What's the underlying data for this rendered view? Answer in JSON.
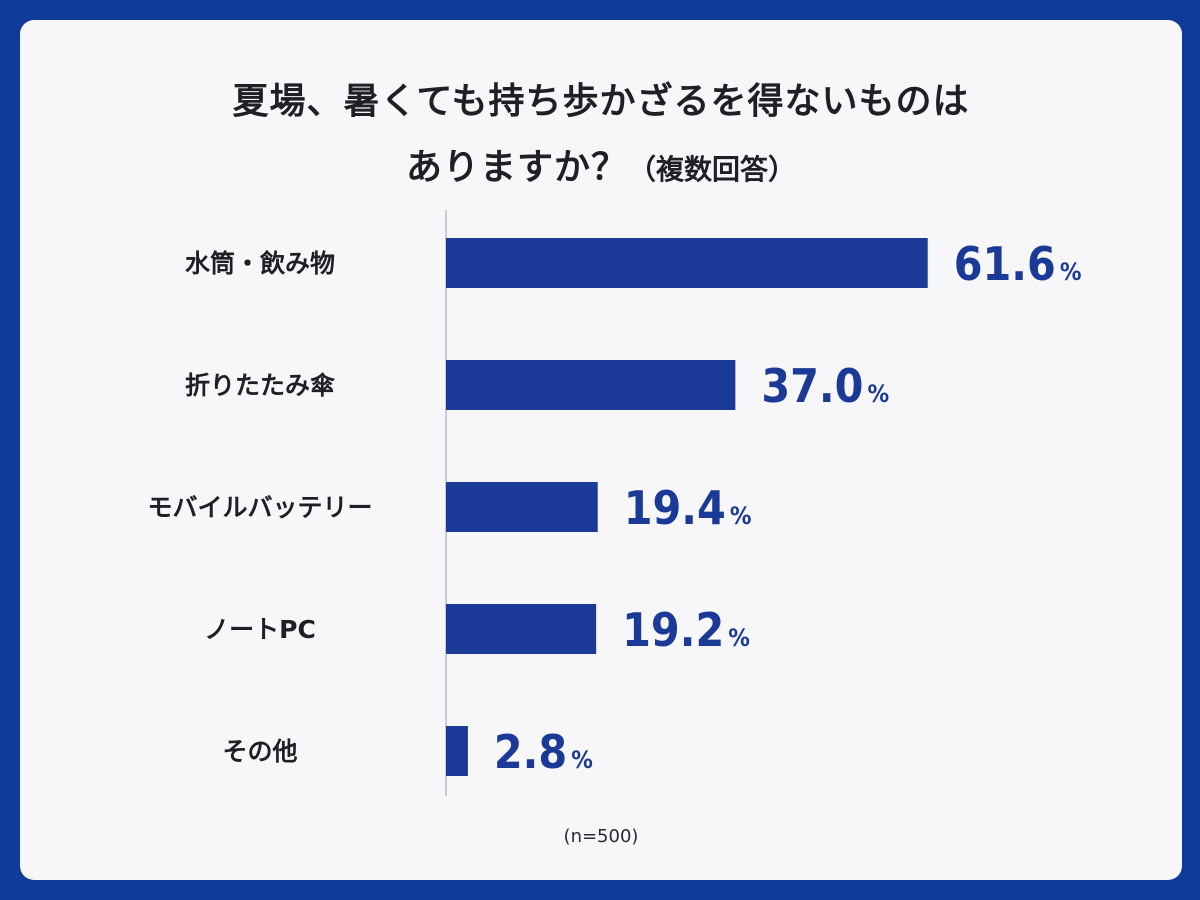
{
  "title_line1": "夏場、暑くても持ち歩かざるを得ないものは",
  "title_line2": "ありますか？",
  "title_note": "（複数回答）",
  "sample_note": "(n=500)",
  "colors": {
    "background": "#0f3a97",
    "card": "#f7f7fa",
    "bar": "#1b3a98",
    "axis": "#b9b9c2",
    "text": "#1f1f26"
  },
  "chart_data": {
    "type": "bar",
    "orientation": "horizontal",
    "categories": [
      "水筒・飲み物",
      "折りたたみ傘",
      "モバイルバッテリー",
      "ノートPC",
      "その他"
    ],
    "values": [
      61.6,
      37.0,
      19.4,
      19.2,
      2.8
    ],
    "value_labels": [
      "61.6",
      "37.0",
      "19.4",
      "19.2",
      "2.8"
    ],
    "unit": "%",
    "title": "夏場、暑くても持ち歩かざるを得ないものは ありますか？（複数回答）",
    "xlabel": "",
    "ylabel": "",
    "xlim": [
      0,
      100
    ],
    "grid": false,
    "legend": "none"
  }
}
